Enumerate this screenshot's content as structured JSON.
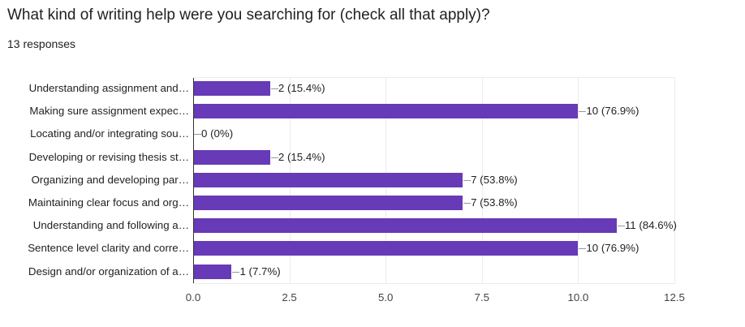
{
  "question": {
    "title": "What kind of writing help were you searching for (check all that apply)?",
    "responses": "13 responses"
  },
  "colors": {
    "bar": "#673ab7",
    "grid": "#ebebeb",
    "axis": "#333333"
  },
  "chart_data": {
    "type": "bar",
    "orientation": "horizontal",
    "title": "What kind of writing help were you searching for (check all that apply)?",
    "subtitle": "13 responses",
    "xlabel": "",
    "ylabel": "",
    "xlim": [
      0,
      12.5
    ],
    "x_ticks": [
      "0.0",
      "2.5",
      "5.0",
      "7.5",
      "10.0",
      "12.5"
    ],
    "grid": true,
    "legend": "none",
    "categories": [
      "Understanding assignment and…",
      "Making sure assignment expec…",
      "Locating and/or integrating sou…",
      "Developing or revising thesis st…",
      "Organizing and developing par…",
      "Maintaining clear focus and org…",
      "Understanding and following a…",
      "Sentence level clarity and corre…",
      "Design and/or organization of a…"
    ],
    "values": [
      2,
      10,
      0,
      2,
      7,
      7,
      11,
      10,
      1
    ],
    "labels": [
      "2 (15.4%)",
      "10 (76.9%)",
      "0 (0%)",
      "2 (15.4%)",
      "7 (53.8%)",
      "7 (53.8%)",
      "11 (84.6%)",
      "10 (76.9%)",
      "1 (7.7%)"
    ]
  }
}
